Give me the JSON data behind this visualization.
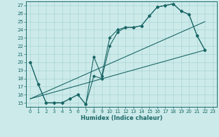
{
  "xlabel": "Humidex (Indice chaleur)",
  "bg_color": "#cceaea",
  "grid_color": "#aad4d4",
  "line_color": "#1a6666",
  "xlim": [
    -0.5,
    23.5
  ],
  "ylim": [
    14.5,
    27.5
  ],
  "yticks": [
    15,
    16,
    17,
    18,
    19,
    20,
    21,
    22,
    23,
    24,
    25,
    26,
    27
  ],
  "xticks": [
    0,
    1,
    2,
    3,
    4,
    5,
    6,
    7,
    8,
    9,
    10,
    11,
    12,
    13,
    14,
    15,
    16,
    17,
    18,
    19,
    20,
    21,
    22,
    23
  ],
  "line1_x": [
    0,
    1,
    2,
    3,
    4,
    5,
    6,
    7,
    8,
    9,
    10,
    11,
    12,
    13,
    14,
    15,
    16,
    17,
    18,
    19,
    20,
    21,
    22
  ],
  "line1_y": [
    20,
    17.3,
    15,
    15,
    15,
    15.5,
    16,
    14.8,
    20.7,
    18.3,
    23.0,
    24.0,
    24.3,
    24.3,
    24.5,
    25.7,
    26.8,
    27.0,
    27.2,
    26.3,
    25.9,
    23.3,
    21.5
  ],
  "line2_x": [
    0,
    1,
    2,
    3,
    4,
    5,
    6,
    7,
    8,
    9,
    10,
    11,
    12,
    13,
    14,
    15,
    16,
    17,
    18,
    19,
    20,
    21,
    22
  ],
  "line2_y": [
    20,
    17.3,
    15,
    15,
    15,
    15.5,
    16,
    14.8,
    18.3,
    18.0,
    22.0,
    23.7,
    24.3,
    24.3,
    24.5,
    25.7,
    26.8,
    27.0,
    27.2,
    26.3,
    25.9,
    23.3,
    21.5
  ],
  "line3_x": [
    0,
    22
  ],
  "line3_y": [
    15.5,
    21.5
  ],
  "line4_x": [
    0,
    22
  ],
  "line4_y": [
    15.5,
    25.0
  ]
}
